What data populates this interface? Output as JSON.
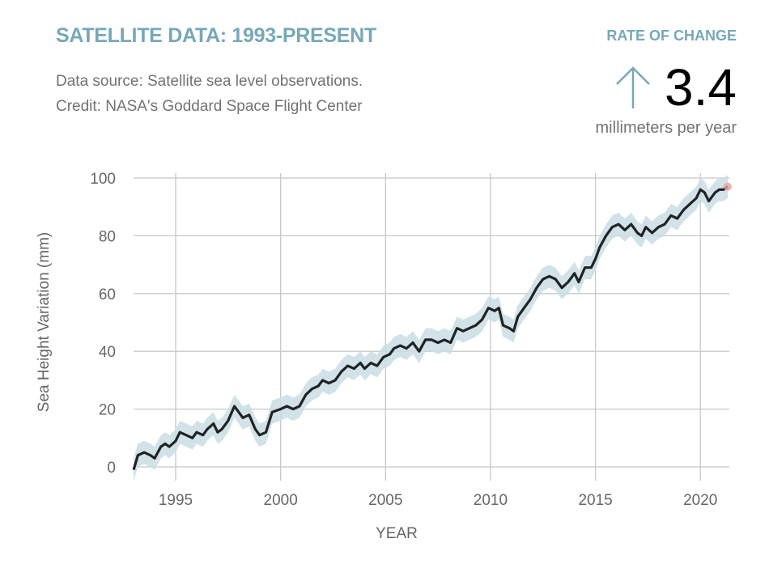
{
  "header": {
    "title": "SATELLITE DATA: 1993-PRESENT",
    "source": "Data source: Satellite sea level observations.",
    "credit": "Credit: NASA's Goddard Space Flight Center"
  },
  "rate": {
    "label": "RATE OF CHANGE",
    "value": "3.4",
    "unit": "millimeters per year",
    "icon": "arrow-up-icon"
  },
  "chart_data": {
    "type": "line",
    "title": "",
    "xlabel": "YEAR",
    "ylabel": "Sea Height Variation (mm)",
    "xlim": [
      1993,
      2021.3
    ],
    "ylim": [
      0,
      100
    ],
    "x_ticks": [
      "1995",
      "2000",
      "2005",
      "2010",
      "2015",
      "2020"
    ],
    "y_ticks": [
      "0",
      "20",
      "40",
      "60",
      "80",
      "100"
    ],
    "grid": true,
    "uncertainty_mm": 4,
    "colors": {
      "line": "#222222",
      "band": "#c9dde5",
      "last_point": "#e8a0a0",
      "grid": "#c8c8c8"
    },
    "x": [
      1993.0,
      1993.2,
      1993.5,
      1993.8,
      1994.0,
      1994.3,
      1994.5,
      1994.7,
      1995.0,
      1995.2,
      1995.5,
      1995.8,
      1996.0,
      1996.3,
      1996.5,
      1996.8,
      1997.0,
      1997.2,
      1997.5,
      1997.8,
      1998.0,
      1998.2,
      1998.5,
      1998.8,
      1999.0,
      1999.3,
      1999.6,
      2000.0,
      2000.3,
      2000.6,
      2000.9,
      2001.2,
      2001.5,
      2001.8,
      2002.0,
      2002.3,
      2002.6,
      2002.9,
      2003.2,
      2003.5,
      2003.8,
      2004.0,
      2004.3,
      2004.6,
      2004.9,
      2005.2,
      2005.4,
      2005.7,
      2006.0,
      2006.3,
      2006.6,
      2006.9,
      2007.2,
      2007.5,
      2007.8,
      2008.1,
      2008.4,
      2008.7,
      2009.0,
      2009.3,
      2009.6,
      2009.9,
      2010.2,
      2010.4,
      2010.6,
      2010.9,
      2011.1,
      2011.3,
      2011.6,
      2011.9,
      2012.2,
      2012.5,
      2012.8,
      2013.1,
      2013.4,
      2013.7,
      2014.0,
      2014.2,
      2014.5,
      2014.8,
      2015.0,
      2015.2,
      2015.5,
      2015.8,
      2016.1,
      2016.4,
      2016.7,
      2017.0,
      2017.2,
      2017.4,
      2017.7,
      2018.0,
      2018.3,
      2018.6,
      2018.9,
      2019.2,
      2019.5,
      2019.8,
      2020.0,
      2020.2,
      2020.4,
      2020.7,
      2020.9,
      2021.1,
      2021.3
    ],
    "y": [
      -1,
      4,
      5,
      4,
      3,
      7,
      8,
      7,
      9,
      12,
      11,
      10,
      12,
      11,
      13,
      15,
      12,
      13,
      16,
      21,
      19,
      17,
      18,
      13,
      11,
      12,
      19,
      20,
      21,
      20,
      21,
      25,
      27,
      28,
      30,
      29,
      30,
      33,
      35,
      34,
      36,
      34,
      36,
      35,
      38,
      39,
      41,
      42,
      41,
      43,
      40,
      44,
      44,
      43,
      44,
      43,
      48,
      47,
      48,
      49,
      51,
      55,
      54,
      55,
      49,
      48,
      47,
      52,
      55,
      58,
      62,
      65,
      66,
      65,
      62,
      64,
      67,
      64,
      69,
      69,
      72,
      76,
      80,
      83,
      84,
      82,
      84,
      81,
      80,
      83,
      81,
      83,
      84,
      87,
      86,
      89,
      91,
      93,
      96,
      95,
      92,
      95,
      96,
      96,
      97
    ]
  }
}
